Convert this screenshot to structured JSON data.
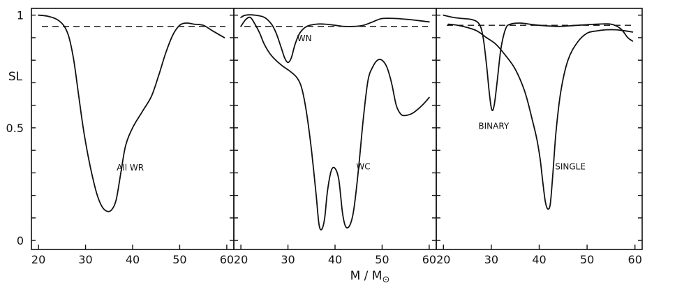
{
  "chart_data": {
    "type": "line",
    "ylabel": "SL",
    "xlabel_main": "M / M",
    "xlabel_sub": "⊙",
    "xlim": [
      18.5,
      61.5
    ],
    "ylim": [
      -0.04,
      1.03
    ],
    "x_ticks": [
      20,
      30,
      40,
      50,
      60
    ],
    "x_tick_labels": [
      "20",
      "30",
      "40",
      "50",
      "60"
    ],
    "y_ticks": [
      0,
      0.1,
      0.2,
      0.3,
      0.4,
      0.5,
      0.6,
      0.7,
      0.8,
      0.9,
      1.0
    ],
    "y_tick_labels": [
      {
        "value": 0,
        "label": "0"
      },
      {
        "value": 0.5,
        "label": "0.5"
      },
      {
        "value": 1.0,
        "label": "1"
      }
    ],
    "panels": [
      {
        "id": "left",
        "reference_line": 0.95,
        "series": [
          {
            "name": "All WR",
            "label_pos": [
              39.5,
              0.31
            ],
            "points": [
              [
                20,
                1.0
              ],
              [
                22,
                0.995
              ],
              [
                24,
                0.98
              ],
              [
                25.5,
                0.95
              ],
              [
                26.5,
                0.9
              ],
              [
                27.5,
                0.8
              ],
              [
                28.5,
                0.65
              ],
              [
                29.5,
                0.5
              ],
              [
                30.5,
                0.38
              ],
              [
                31.5,
                0.28
              ],
              [
                32.5,
                0.2
              ],
              [
                33.5,
                0.15
              ],
              [
                34.5,
                0.13
              ],
              [
                35.5,
                0.135
              ],
              [
                36.5,
                0.18
              ],
              [
                37.5,
                0.3
              ],
              [
                38.5,
                0.42
              ],
              [
                40,
                0.5
              ],
              [
                42,
                0.57
              ],
              [
                44,
                0.64
              ],
              [
                45.5,
                0.73
              ],
              [
                47,
                0.83
              ],
              [
                48.5,
                0.91
              ],
              [
                50,
                0.955
              ],
              [
                51.5,
                0.965
              ],
              [
                53,
                0.96
              ],
              [
                55,
                0.955
              ],
              [
                57,
                0.93
              ],
              [
                59.5,
                0.9
              ]
            ]
          }
        ]
      },
      {
        "id": "middle",
        "reference_line": 0.95,
        "series": [
          {
            "name": "WN",
            "label_pos": [
              33.5,
              0.885
            ],
            "points": [
              [
                20,
                0.99
              ],
              [
                21,
                1.0
              ],
              [
                23,
                1.0
              ],
              [
                25,
                0.99
              ],
              [
                26.5,
                0.96
              ],
              [
                27.5,
                0.92
              ],
              [
                28.5,
                0.86
              ],
              [
                29.3,
                0.81
              ],
              [
                30,
                0.79
              ],
              [
                30.7,
                0.81
              ],
              [
                31.5,
                0.87
              ],
              [
                32.5,
                0.92
              ],
              [
                34,
                0.95
              ],
              [
                36,
                0.96
              ],
              [
                38,
                0.96
              ],
              [
                40,
                0.955
              ],
              [
                42,
                0.95
              ],
              [
                44,
                0.95
              ],
              [
                46,
                0.955
              ],
              [
                48,
                0.97
              ],
              [
                50,
                0.985
              ],
              [
                53,
                0.985
              ],
              [
                56,
                0.98
              ],
              [
                58,
                0.975
              ],
              [
                60,
                0.97
              ]
            ]
          },
          {
            "name": "WC",
            "label_pos": [
              46,
              0.315
            ],
            "points": [
              [
                20,
                0.95
              ],
              [
                21,
                0.98
              ],
              [
                22,
                0.99
              ],
              [
                23,
                0.96
              ],
              [
                24,
                0.92
              ],
              [
                25,
                0.87
              ],
              [
                26.5,
                0.82
              ],
              [
                28.5,
                0.78
              ],
              [
                30.5,
                0.75
              ],
              [
                32,
                0.72
              ],
              [
                33,
                0.67
              ],
              [
                34,
                0.56
              ],
              [
                35,
                0.4
              ],
              [
                36,
                0.2
              ],
              [
                36.6,
                0.07
              ],
              [
                37.2,
                0.05
              ],
              [
                37.8,
                0.1
              ],
              [
                38.4,
                0.22
              ],
              [
                39.2,
                0.31
              ],
              [
                40,
                0.32
              ],
              [
                40.8,
                0.27
              ],
              [
                41.6,
                0.12
              ],
              [
                42.3,
                0.06
              ],
              [
                43.2,
                0.07
              ],
              [
                44,
                0.14
              ],
              [
                45,
                0.32
              ],
              [
                46,
                0.54
              ],
              [
                47,
                0.71
              ],
              [
                48,
                0.77
              ],
              [
                49,
                0.8
              ],
              [
                50,
                0.8
              ],
              [
                51,
                0.77
              ],
              [
                52,
                0.7
              ],
              [
                53,
                0.6
              ],
              [
                54,
                0.56
              ],
              [
                55,
                0.555
              ],
              [
                56.5,
                0.565
              ],
              [
                58,
                0.59
              ],
              [
                59,
                0.61
              ],
              [
                60,
                0.635
              ]
            ]
          }
        ]
      },
      {
        "id": "right",
        "reference_line": 0.955,
        "series": [
          {
            "name": "BINARY",
            "label_pos": [
              30.5,
              0.495
            ],
            "points": [
              [
                20,
                1.0
              ],
              [
                22,
                0.99
              ],
              [
                24,
                0.985
              ],
              [
                26,
                0.98
              ],
              [
                27.5,
                0.96
              ],
              [
                28.3,
                0.9
              ],
              [
                29,
                0.78
              ],
              [
                29.6,
                0.65
              ],
              [
                30.1,
                0.58
              ],
              [
                30.6,
                0.6
              ],
              [
                31.2,
                0.7
              ],
              [
                32,
                0.85
              ],
              [
                33,
                0.94
              ],
              [
                34,
                0.96
              ],
              [
                36,
                0.965
              ],
              [
                38,
                0.96
              ],
              [
                40,
                0.955
              ],
              [
                44,
                0.95
              ],
              [
                48,
                0.955
              ],
              [
                52,
                0.96
              ],
              [
                55,
                0.96
              ],
              [
                57,
                0.94
              ],
              [
                58.5,
                0.9
              ],
              [
                59.5,
                0.885
              ]
            ]
          },
          {
            "name": "SINGLE",
            "label_pos": [
              46.5,
              0.315
            ],
            "points": [
              [
                21,
                0.96
              ],
              [
                23,
                0.955
              ],
              [
                25,
                0.945
              ],
              [
                27,
                0.93
              ],
              [
                29,
                0.9
              ],
              [
                31,
                0.87
              ],
              [
                33,
                0.82
              ],
              [
                35,
                0.76
              ],
              [
                37,
                0.66
              ],
              [
                38.5,
                0.54
              ],
              [
                39.5,
                0.45
              ],
              [
                40.2,
                0.36
              ],
              [
                40.8,
                0.25
              ],
              [
                41.3,
                0.17
              ],
              [
                41.8,
                0.14
              ],
              [
                42.3,
                0.16
              ],
              [
                42.8,
                0.28
              ],
              [
                43.5,
                0.48
              ],
              [
                44.5,
                0.66
              ],
              [
                46,
                0.8
              ],
              [
                48,
                0.88
              ],
              [
                50,
                0.92
              ],
              [
                52,
                0.93
              ],
              [
                54,
                0.935
              ],
              [
                56,
                0.935
              ],
              [
                58,
                0.93
              ],
              [
                59.5,
                0.925
              ]
            ]
          }
        ]
      }
    ]
  }
}
